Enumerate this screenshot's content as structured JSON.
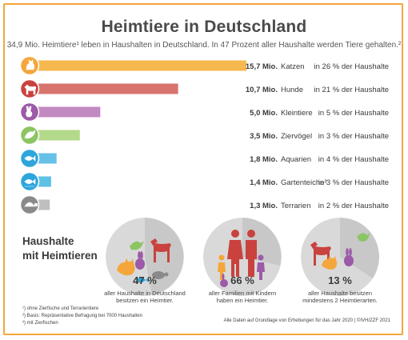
{
  "header": {
    "title": "Heimtiere in Deutschland",
    "subtitle": "34,9 Mio. Heimtiere¹ leben in Haushalten in Deutschland. In 47 Prozent aller Haushalte werden Tiere gehalten.²"
  },
  "chart_data": {
    "type": "bar",
    "orientation": "horizontal",
    "unit": "Mio.",
    "categories": [
      "Katzen",
      "Hunde",
      "Kleintiere",
      "Ziervögel",
      "Aquarien",
      "Gartenteiche³",
      "Terrarien"
    ],
    "values": [
      15.7,
      10.7,
      5.0,
      3.5,
      1.8,
      1.4,
      1.3
    ],
    "value_labels": [
      "15,7 Mio.",
      "10,7 Mio.",
      "5,0 Mio.",
      "3,5 Mio.",
      "1,8 Mio.",
      "1,4 Mio.",
      "1,3 Mio."
    ],
    "household_share": [
      "in 26 % der Haushalte",
      "in 21 % der Haushalte",
      "in 5 % der Haushalte",
      "in 3 % der Haushalte",
      "in 4 % der Haushalte",
      "in 3 % der Haushalte",
      "in 2 % der Haushalte"
    ],
    "colors": [
      "#f6b94f",
      "#d9736d",
      "#c288c0",
      "#b3d98a",
      "#67c0e8",
      "#5fc0e6",
      "#bfbfbf"
    ],
    "icon_colors": [
      "#f4a63b",
      "#c9423e",
      "#9c5aa8",
      "#8cc564",
      "#2ea6dc",
      "#2ea6dc",
      "#8a8a8a"
    ],
    "icons": [
      "cat-icon",
      "dog-icon",
      "rabbit-icon",
      "bird-icon",
      "fish-icon",
      "pond-fish-icon",
      "turtle-icon"
    ],
    "xlim": [
      0,
      15.7
    ]
  },
  "households": {
    "label_line1": "Haushalte",
    "label_line2": "mit Heimtieren",
    "items": [
      {
        "percent": "47 %",
        "caption_line1": "aller Haushalte in Deutschland",
        "caption_line2": "besitzen ein Heimtier."
      },
      {
        "percent": "66 %",
        "caption_line1": "aller Familien mit Kindern",
        "caption_line2": "haben ein Heimtier."
      },
      {
        "percent": "13 %",
        "caption_line1": "aller Haushalte besitzen",
        "caption_line2": "mindestens 2 Heimtierarten."
      }
    ]
  },
  "footnotes": {
    "note1": "¹) ohne Zierfische und Terrarientiere",
    "note2": "²) Basis: Repräsentative Befragung bei 7000 Haushalten",
    "note3": "³) mit Zierfischen",
    "source": "Alle Daten auf Grundlage von Erhebungen für das Jahr 2020 | ©IVH/ZZF 2021"
  }
}
